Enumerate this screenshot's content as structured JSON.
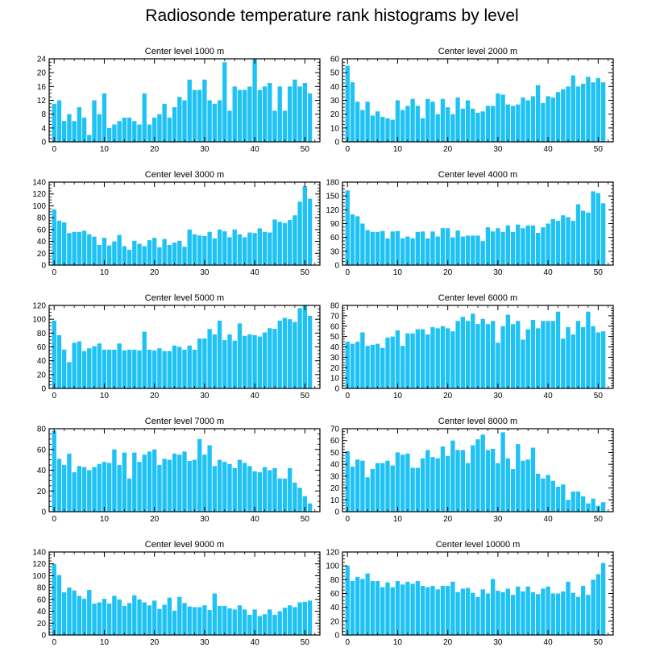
{
  "title": "Radiosonde temperature rank histograms by level",
  "colors": {
    "bar": "#1ec2f5",
    "axis": "#000000"
  },
  "chart_data": [
    {
      "type": "bar",
      "title": "Center level 1000 m",
      "xlabel": "",
      "ylabel": "",
      "xlim": [
        -1,
        53
      ],
      "ylim": [
        0,
        24
      ],
      "xticks": [
        0,
        10,
        20,
        30,
        40,
        50
      ],
      "yticks": [
        0,
        4,
        8,
        12,
        16,
        20,
        24
      ],
      "values": [
        11,
        12,
        6,
        8,
        6,
        10,
        7,
        2,
        12,
        8,
        14,
        4,
        5,
        6,
        7,
        7,
        6,
        5,
        14,
        5,
        7,
        8,
        11,
        7,
        10,
        13,
        12,
        18,
        15,
        15,
        18,
        12,
        11,
        12,
        23,
        9,
        16,
        15,
        15,
        16,
        24,
        15,
        16,
        17,
        9,
        16,
        9,
        16,
        18,
        16,
        17,
        14
      ]
    },
    {
      "type": "bar",
      "title": "Center level 2000 m",
      "xlabel": "",
      "ylabel": "",
      "xlim": [
        -1,
        53
      ],
      "ylim": [
        0,
        60
      ],
      "xticks": [
        0,
        10,
        20,
        30,
        40,
        50
      ],
      "yticks": [
        0,
        10,
        20,
        30,
        40,
        50,
        60
      ],
      "values": [
        55,
        43,
        29,
        23,
        29,
        19,
        22,
        18,
        17,
        16,
        30,
        23,
        26,
        31,
        26,
        17,
        31,
        29,
        20,
        31,
        25,
        20,
        32,
        24,
        30,
        24,
        21,
        22,
        26,
        26,
        35,
        34,
        27,
        26,
        27,
        32,
        30,
        33,
        41,
        28,
        33,
        32,
        36,
        38,
        40,
        48,
        40,
        42,
        47,
        43,
        46,
        43
      ]
    },
    {
      "type": "bar",
      "title": "Center level 3000 m",
      "xlabel": "",
      "ylabel": "",
      "xlim": [
        -1,
        53
      ],
      "ylim": [
        0,
        140
      ],
      "xticks": [
        0,
        10,
        20,
        30,
        40,
        50
      ],
      "yticks": [
        0,
        20,
        40,
        60,
        80,
        100,
        120,
        140
      ],
      "values": [
        94,
        75,
        72,
        54,
        56,
        56,
        58,
        52,
        48,
        34,
        46,
        33,
        40,
        51,
        32,
        26,
        41,
        36,
        32,
        42,
        46,
        30,
        44,
        34,
        38,
        41,
        31,
        60,
        52,
        50,
        49,
        56,
        45,
        60,
        57,
        47,
        60,
        52,
        47,
        55,
        54,
        62,
        56,
        55,
        77,
        73,
        71,
        76,
        84,
        107,
        133,
        112
      ]
    },
    {
      "type": "bar",
      "title": "Center level 4000 m",
      "xlabel": "",
      "ylabel": "",
      "xlim": [
        -1,
        53
      ],
      "ylim": [
        0,
        180
      ],
      "xticks": [
        0,
        10,
        20,
        30,
        40,
        50
      ],
      "yticks": [
        0,
        30,
        60,
        90,
        120,
        150,
        180
      ],
      "values": [
        162,
        110,
        106,
        90,
        76,
        72,
        72,
        74,
        58,
        73,
        74,
        58,
        62,
        58,
        72,
        73,
        58,
        73,
        62,
        80,
        80,
        60,
        75,
        62,
        64,
        64,
        64,
        52,
        82,
        73,
        80,
        72,
        86,
        72,
        88,
        80,
        86,
        86,
        70,
        82,
        90,
        100,
        96,
        108,
        104,
        96,
        132,
        118,
        114,
        160,
        156,
        134
      ]
    },
    {
      "type": "bar",
      "title": "Center level 5000 m",
      "xlabel": "",
      "ylabel": "",
      "xlim": [
        -1,
        53
      ],
      "ylim": [
        0,
        120
      ],
      "xticks": [
        0,
        10,
        20,
        30,
        40,
        50
      ],
      "yticks": [
        0,
        20,
        40,
        60,
        80,
        100,
        120
      ],
      "values": [
        98,
        77,
        56,
        38,
        66,
        68,
        54,
        58,
        61,
        65,
        56,
        56,
        56,
        65,
        55,
        56,
        56,
        55,
        82,
        56,
        55,
        58,
        54,
        54,
        62,
        60,
        56,
        62,
        56,
        72,
        72,
        86,
        78,
        98,
        70,
        78,
        69,
        94,
        76,
        78,
        77,
        75,
        81,
        87,
        86,
        98,
        102,
        100,
        96,
        116,
        120,
        105
      ]
    },
    {
      "type": "bar",
      "title": "Center level 6000 m",
      "xlabel": "",
      "ylabel": "",
      "xlim": [
        -1,
        53
      ],
      "ylim": [
        0,
        80
      ],
      "xticks": [
        0,
        10,
        20,
        30,
        40,
        50
      ],
      "yticks": [
        0,
        10,
        20,
        30,
        40,
        50,
        60,
        70,
        80
      ],
      "values": [
        45,
        43,
        45,
        54,
        41,
        42,
        43,
        39,
        49,
        50,
        56,
        41,
        53,
        53,
        57,
        57,
        52,
        59,
        58,
        60,
        58,
        55,
        65,
        69,
        65,
        72,
        62,
        67,
        62,
        65,
        44,
        60,
        71,
        62,
        65,
        47,
        57,
        66,
        58,
        65,
        65,
        65,
        74,
        48,
        59,
        52,
        65,
        59,
        74,
        60,
        54,
        55
      ]
    },
    {
      "type": "bar",
      "title": "Center level 7000 m",
      "xlabel": "",
      "ylabel": "",
      "xlim": [
        -1,
        53
      ],
      "ylim": [
        0,
        80
      ],
      "xticks": [
        0,
        10,
        20,
        30,
        40,
        50
      ],
      "yticks": [
        0,
        20,
        40,
        60,
        80
      ],
      "values": [
        78,
        51,
        45,
        56,
        38,
        44,
        43,
        40,
        43,
        46,
        48,
        47,
        60,
        45,
        57,
        32,
        57,
        48,
        55,
        58,
        60,
        45,
        51,
        50,
        56,
        55,
        58,
        49,
        50,
        70,
        55,
        64,
        44,
        50,
        48,
        46,
        42,
        50,
        47,
        44,
        39,
        38,
        43,
        40,
        42,
        32,
        32,
        42,
        28,
        23,
        15,
        8
      ]
    },
    {
      "type": "bar",
      "title": "Center level 8000 m",
      "xlabel": "",
      "ylabel": "",
      "xlim": [
        -1,
        53
      ],
      "ylim": [
        0,
        70
      ],
      "xticks": [
        0,
        10,
        20,
        30,
        40,
        50
      ],
      "yticks": [
        0,
        10,
        20,
        30,
        40,
        50,
        60,
        70
      ],
      "values": [
        51,
        38,
        44,
        43,
        29,
        36,
        41,
        41,
        43,
        39,
        50,
        48,
        49,
        37,
        37,
        45,
        52,
        46,
        45,
        55,
        47,
        60,
        52,
        52,
        41,
        56,
        61,
        65,
        52,
        53,
        41,
        67,
        45,
        36,
        57,
        43,
        44,
        54,
        32,
        28,
        31,
        26,
        21,
        23,
        10,
        17,
        17,
        13,
        7,
        11,
        5,
        8
      ]
    },
    {
      "type": "bar",
      "title": "Center level 9000 m",
      "xlabel": "",
      "ylabel": "",
      "xlim": [
        -1,
        53
      ],
      "ylim": [
        0,
        140
      ],
      "xticks": [
        0,
        10,
        20,
        30,
        40,
        50
      ],
      "yticks": [
        0,
        20,
        40,
        60,
        80,
        100,
        120,
        140
      ],
      "values": [
        120,
        101,
        72,
        80,
        75,
        66,
        61,
        76,
        53,
        55,
        61,
        53,
        66,
        60,
        49,
        54,
        67,
        60,
        55,
        50,
        58,
        44,
        51,
        63,
        41,
        64,
        54,
        48,
        47,
        47,
        50,
        42,
        70,
        49,
        49,
        45,
        43,
        50,
        43,
        34,
        43,
        32,
        35,
        43,
        34,
        40,
        46,
        50,
        47,
        55,
        56,
        58
      ]
    },
    {
      "type": "bar",
      "title": "Center level 10000 m",
      "xlabel": "",
      "ylabel": "",
      "xlim": [
        -1,
        53
      ],
      "ylim": [
        0,
        120
      ],
      "xticks": [
        0,
        10,
        20,
        30,
        40,
        50
      ],
      "yticks": [
        0,
        20,
        40,
        60,
        80,
        100,
        120
      ],
      "values": [
        100,
        78,
        84,
        81,
        89,
        78,
        78,
        69,
        76,
        69,
        78,
        73,
        77,
        74,
        78,
        71,
        69,
        71,
        66,
        71,
        71,
        77,
        62,
        67,
        68,
        61,
        55,
        66,
        60,
        81,
        64,
        62,
        67,
        58,
        70,
        63,
        70,
        62,
        59,
        67,
        70,
        60,
        60,
        63,
        77,
        61,
        55,
        71,
        58,
        80,
        88,
        104
      ]
    }
  ]
}
